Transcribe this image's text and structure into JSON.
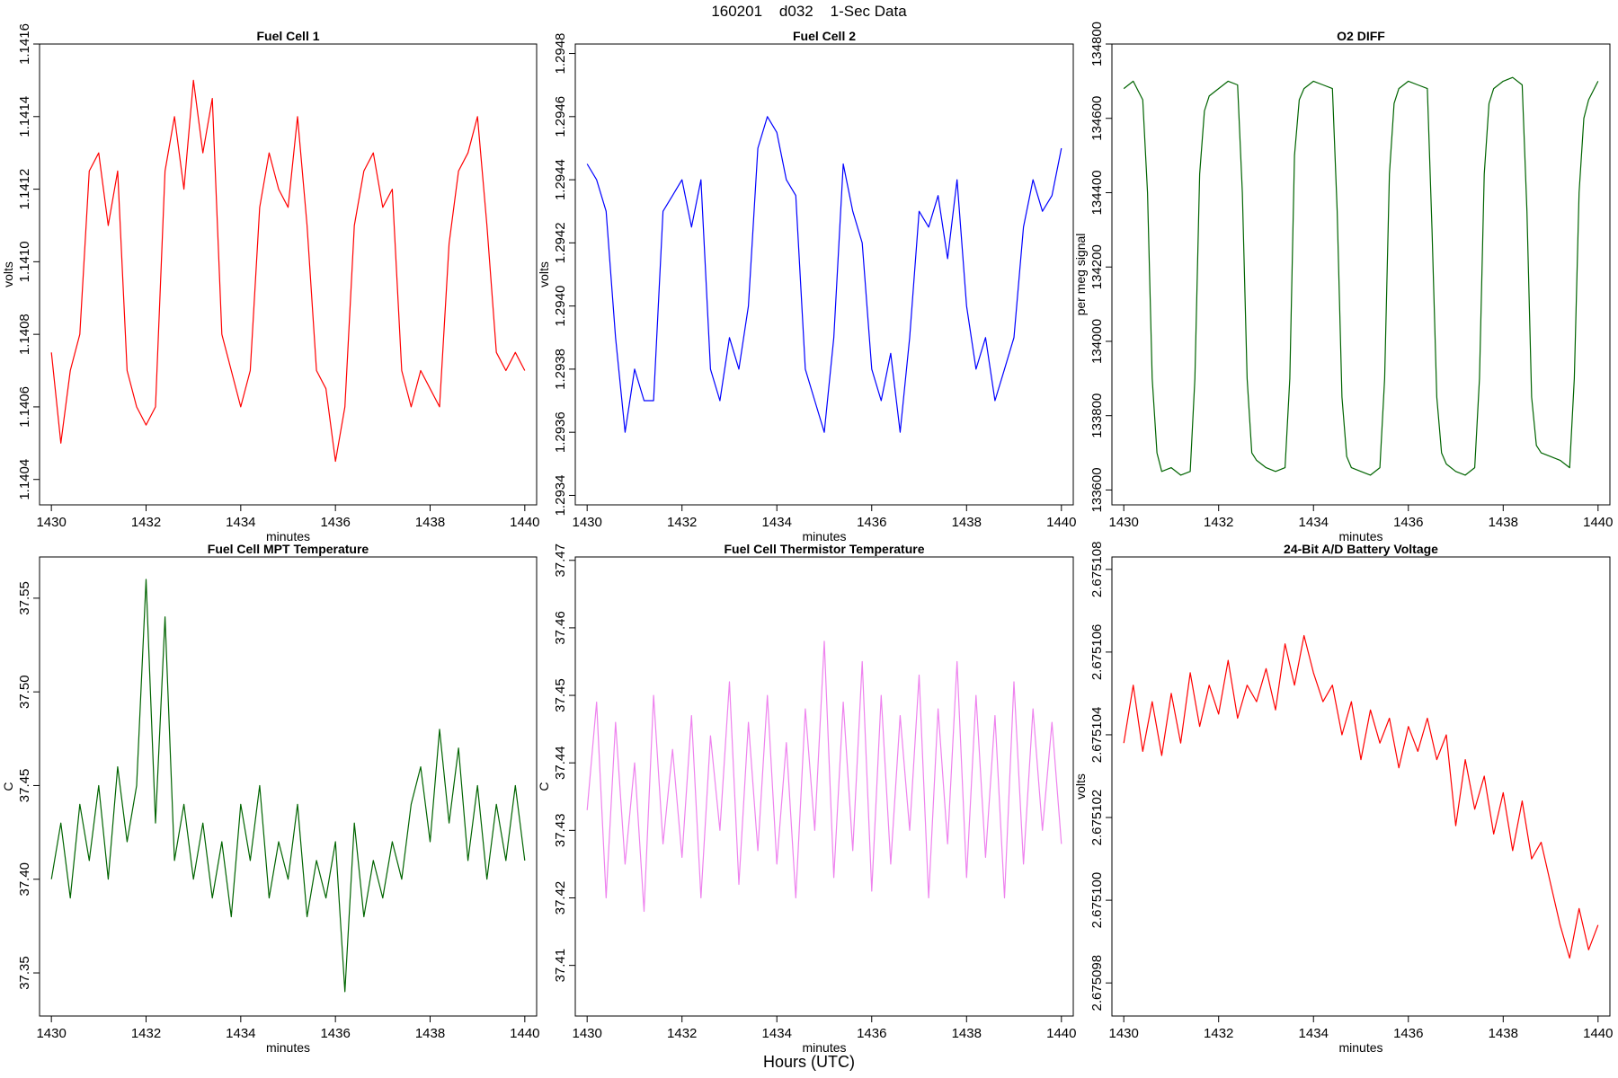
{
  "figure": {
    "title": "160201    d032    1-Sec Data",
    "xlabel": "Hours (UTC)"
  },
  "chart_data": [
    {
      "type": "line",
      "title": "Fuel Cell 1",
      "xlabel": "minutes",
      "ylabel": "volts",
      "color": "#ff0000",
      "xlim": [
        1429.75,
        1440.25
      ],
      "ylim": [
        1.14033,
        1.1416
      ],
      "xticks": [
        1430,
        1432,
        1434,
        1436,
        1438,
        1440
      ],
      "xtick_labels": [
        "1430",
        "1432",
        "1434",
        "1436",
        "1438",
        "1440"
      ],
      "yticks": [
        1.1404,
        1.1406,
        1.1408,
        1.141,
        1.1412,
        1.1414,
        1.1416
      ],
      "ytick_labels": [
        "1.1404",
        "1.1406",
        "1.1408",
        "1.1410",
        "1.1412",
        "1.1414",
        "1.1416"
      ],
      "x": [
        1430.0,
        1430.2,
        1430.4,
        1430.6,
        1430.8,
        1431.0,
        1431.2,
        1431.4,
        1431.6,
        1431.8,
        1432.0,
        1432.2,
        1432.4,
        1432.6,
        1432.8,
        1433.0,
        1433.2,
        1433.4,
        1433.6,
        1433.8,
        1434.0,
        1434.2,
        1434.4,
        1434.6,
        1434.8,
        1435.0,
        1435.2,
        1435.4,
        1435.6,
        1435.8,
        1436.0,
        1436.2,
        1436.4,
        1436.6,
        1436.8,
        1437.0,
        1437.2,
        1437.4,
        1437.6,
        1437.8,
        1438.0,
        1438.2,
        1438.4,
        1438.6,
        1438.8,
        1439.0,
        1439.2,
        1439.4,
        1439.6,
        1439.8,
        1440.0
      ],
      "y": [
        1.14075,
        1.1405,
        1.1407,
        1.1408,
        1.14125,
        1.1413,
        1.1411,
        1.14125,
        1.1407,
        1.1406,
        1.14055,
        1.1406,
        1.14125,
        1.1414,
        1.1412,
        1.1415,
        1.1413,
        1.14145,
        1.1408,
        1.1407,
        1.1406,
        1.1407,
        1.14115,
        1.1413,
        1.1412,
        1.14115,
        1.1414,
        1.1411,
        1.1407,
        1.14065,
        1.14045,
        1.1406,
        1.1411,
        1.14125,
        1.1413,
        1.14115,
        1.1412,
        1.1407,
        1.1406,
        1.1407,
        1.14065,
        1.1406,
        1.14105,
        1.14125,
        1.1413,
        1.1414,
        1.1411,
        1.14075,
        1.1407,
        1.14075,
        1.1407
      ]
    },
    {
      "type": "line",
      "title": "Fuel Cell 2",
      "xlabel": "minutes",
      "ylabel": "volts",
      "color": "#0000ff",
      "xlim": [
        1429.75,
        1440.25
      ],
      "ylim": [
        1.29337,
        1.29483
      ],
      "xticks": [
        1430,
        1432,
        1434,
        1436,
        1438,
        1440
      ],
      "xtick_labels": [
        "1430",
        "1432",
        "1434",
        "1436",
        "1438",
        "1440"
      ],
      "yticks": [
        1.2934,
        1.2936,
        1.2938,
        1.294,
        1.2942,
        1.2944,
        1.2946,
        1.2948
      ],
      "ytick_labels": [
        "1.2934",
        "1.2936",
        "1.2938",
        "1.2940",
        "1.2942",
        "1.2944",
        "1.2946",
        "1.2948"
      ],
      "x": [
        1430.0,
        1430.2,
        1430.4,
        1430.6,
        1430.8,
        1431.0,
        1431.2,
        1431.4,
        1431.6,
        1431.8,
        1432.0,
        1432.2,
        1432.4,
        1432.6,
        1432.8,
        1433.0,
        1433.2,
        1433.4,
        1433.6,
        1433.8,
        1434.0,
        1434.2,
        1434.4,
        1434.6,
        1434.8,
        1435.0,
        1435.2,
        1435.4,
        1435.6,
        1435.8,
        1436.0,
        1436.2,
        1436.4,
        1436.6,
        1436.8,
        1437.0,
        1437.2,
        1437.4,
        1437.6,
        1437.8,
        1438.0,
        1438.2,
        1438.4,
        1438.6,
        1438.8,
        1439.0,
        1439.2,
        1439.4,
        1439.6,
        1439.8,
        1440.0
      ],
      "y": [
        1.29445,
        1.2944,
        1.2943,
        1.2939,
        1.2936,
        1.2938,
        1.2937,
        1.2937,
        1.2943,
        1.29435,
        1.2944,
        1.29425,
        1.2944,
        1.2938,
        1.2937,
        1.2939,
        1.2938,
        1.294,
        1.2945,
        1.2946,
        1.29455,
        1.2944,
        1.29435,
        1.2938,
        1.2937,
        1.2936,
        1.2939,
        1.29445,
        1.2943,
        1.2942,
        1.2938,
        1.2937,
        1.29385,
        1.2936,
        1.2939,
        1.2943,
        1.29425,
        1.29435,
        1.29415,
        1.2944,
        1.294,
        1.2938,
        1.2939,
        1.2937,
        1.2938,
        1.2939,
        1.29425,
        1.2944,
        1.2943,
        1.29435,
        1.2945
      ]
    },
    {
      "type": "line",
      "title": "O2 DIFF",
      "xlabel": "minutes",
      "ylabel": "per meg signal",
      "color": "#006400",
      "xlim": [
        1429.75,
        1440.25
      ],
      "ylim": [
        133560,
        134800
      ],
      "xticks": [
        1430,
        1432,
        1434,
        1436,
        1438,
        1440
      ],
      "xtick_labels": [
        "1430",
        "1432",
        "1434",
        "1436",
        "1438",
        "1440"
      ],
      "yticks": [
        133600,
        133800,
        134000,
        134200,
        134400,
        134600,
        134800
      ],
      "ytick_labels": [
        "133600",
        "133800",
        "134000",
        "134200",
        "134400",
        "134600",
        "134800"
      ],
      "x": [
        1430.0,
        1430.2,
        1430.4,
        1430.5,
        1430.6,
        1430.7,
        1430.8,
        1431.0,
        1431.2,
        1431.4,
        1431.5,
        1431.6,
        1431.7,
        1431.8,
        1432.0,
        1432.2,
        1432.4,
        1432.5,
        1432.6,
        1432.7,
        1432.8,
        1433.0,
        1433.2,
        1433.4,
        1433.5,
        1433.6,
        1433.7,
        1433.8,
        1434.0,
        1434.2,
        1434.4,
        1434.5,
        1434.6,
        1434.7,
        1434.8,
        1435.0,
        1435.2,
        1435.4,
        1435.5,
        1435.6,
        1435.7,
        1435.8,
        1436.0,
        1436.2,
        1436.4,
        1436.5,
        1436.6,
        1436.7,
        1436.8,
        1437.0,
        1437.2,
        1437.4,
        1437.5,
        1437.6,
        1437.7,
        1437.8,
        1438.0,
        1438.2,
        1438.4,
        1438.5,
        1438.6,
        1438.7,
        1438.8,
        1439.0,
        1439.2,
        1439.4,
        1439.5,
        1439.6,
        1439.7,
        1439.8,
        1440.0
      ],
      "y": [
        134680,
        134700,
        134650,
        134400,
        133900,
        133700,
        133650,
        133660,
        133640,
        133650,
        133900,
        134450,
        134620,
        134660,
        134680,
        134700,
        134690,
        134400,
        133900,
        133700,
        133680,
        133660,
        133650,
        133660,
        133900,
        134500,
        134650,
        134680,
        134700,
        134690,
        134680,
        134350,
        133850,
        133690,
        133660,
        133650,
        133640,
        133660,
        133900,
        134450,
        134640,
        134680,
        134700,
        134690,
        134680,
        134300,
        133850,
        133700,
        133670,
        133650,
        133640,
        133660,
        133900,
        134450,
        134640,
        134680,
        134700,
        134710,
        134690,
        134350,
        133850,
        133720,
        133700,
        133690,
        133680,
        133660,
        133900,
        134400,
        134600,
        134650,
        134700
      ]
    },
    {
      "type": "line",
      "title": "Fuel Cell MPT Temperature",
      "xlabel": "minutes",
      "ylabel": "C",
      "color": "#006400",
      "xlim": [
        1429.75,
        1440.25
      ],
      "ylim": [
        37.327,
        37.572
      ],
      "xticks": [
        1430,
        1432,
        1434,
        1436,
        1438,
        1440
      ],
      "xtick_labels": [
        "1430",
        "1432",
        "1434",
        "1436",
        "1438",
        "1440"
      ],
      "yticks": [
        37.35,
        37.4,
        37.45,
        37.5,
        37.55
      ],
      "ytick_labels": [
        "37.35",
        "37.40",
        "37.45",
        "37.50",
        "37.55"
      ],
      "x": [
        1430.0,
        1430.2,
        1430.4,
        1430.6,
        1430.8,
        1431.0,
        1431.2,
        1431.4,
        1431.6,
        1431.8,
        1432.0,
        1432.2,
        1432.4,
        1432.6,
        1432.8,
        1433.0,
        1433.2,
        1433.4,
        1433.6,
        1433.8,
        1434.0,
        1434.2,
        1434.4,
        1434.6,
        1434.8,
        1435.0,
        1435.2,
        1435.4,
        1435.6,
        1435.8,
        1436.0,
        1436.2,
        1436.4,
        1436.6,
        1436.8,
        1437.0,
        1437.2,
        1437.4,
        1437.6,
        1437.8,
        1438.0,
        1438.2,
        1438.4,
        1438.6,
        1438.8,
        1439.0,
        1439.2,
        1439.4,
        1439.6,
        1439.8,
        1440.0
      ],
      "y": [
        37.4,
        37.43,
        37.39,
        37.44,
        37.41,
        37.45,
        37.4,
        37.46,
        37.42,
        37.45,
        37.56,
        37.43,
        37.54,
        37.41,
        37.44,
        37.4,
        37.43,
        37.39,
        37.42,
        37.38,
        37.44,
        37.41,
        37.45,
        37.39,
        37.42,
        37.4,
        37.44,
        37.38,
        37.41,
        37.39,
        37.42,
        37.34,
        37.43,
        37.38,
        37.41,
        37.39,
        37.42,
        37.4,
        37.44,
        37.46,
        37.42,
        37.48,
        37.43,
        37.47,
        37.41,
        37.45,
        37.4,
        37.44,
        37.41,
        37.45,
        37.41
      ]
    },
    {
      "type": "line",
      "title": "Fuel Cell Thermistor Temperature",
      "xlabel": "minutes",
      "ylabel": "C",
      "color": "#ee82ee",
      "xlim": [
        1429.75,
        1440.25
      ],
      "ylim": [
        37.4025,
        37.4705
      ],
      "xticks": [
        1430,
        1432,
        1434,
        1436,
        1438,
        1440
      ],
      "xtick_labels": [
        "1430",
        "1432",
        "1434",
        "1436",
        "1438",
        "1440"
      ],
      "yticks": [
        37.41,
        37.42,
        37.43,
        37.44,
        37.45,
        37.46,
        37.47
      ],
      "ytick_labels": [
        "37.41",
        "37.42",
        "37.43",
        "37.44",
        "37.45",
        "37.46",
        "37.47"
      ],
      "x": [
        1430.0,
        1430.2,
        1430.4,
        1430.6,
        1430.8,
        1431.0,
        1431.2,
        1431.4,
        1431.6,
        1431.8,
        1432.0,
        1432.2,
        1432.4,
        1432.6,
        1432.8,
        1433.0,
        1433.2,
        1433.4,
        1433.6,
        1433.8,
        1434.0,
        1434.2,
        1434.4,
        1434.6,
        1434.8,
        1435.0,
        1435.2,
        1435.4,
        1435.6,
        1435.8,
        1436.0,
        1436.2,
        1436.4,
        1436.6,
        1436.8,
        1437.0,
        1437.2,
        1437.4,
        1437.6,
        1437.8,
        1438.0,
        1438.2,
        1438.4,
        1438.6,
        1438.8,
        1439.0,
        1439.2,
        1439.4,
        1439.6,
        1439.8,
        1440.0
      ],
      "y": [
        37.433,
        37.449,
        37.42,
        37.446,
        37.425,
        37.44,
        37.418,
        37.45,
        37.428,
        37.442,
        37.426,
        37.447,
        37.42,
        37.444,
        37.43,
        37.452,
        37.422,
        37.446,
        37.427,
        37.45,
        37.425,
        37.443,
        37.42,
        37.448,
        37.43,
        37.458,
        37.423,
        37.449,
        37.427,
        37.455,
        37.421,
        37.45,
        37.425,
        37.447,
        37.43,
        37.453,
        37.42,
        37.448,
        37.428,
        37.455,
        37.423,
        37.45,
        37.426,
        37.447,
        37.42,
        37.452,
        37.425,
        37.448,
        37.43,
        37.446,
        37.428
      ]
    },
    {
      "type": "line",
      "title": "24-Bit A/D Battery Voltage",
      "xlabel": "minutes",
      "ylabel": "volts",
      "color": "#ff0000",
      "xlim": [
        1429.75,
        1440.25
      ],
      "ylim": [
        2.6750972,
        2.6751083
      ],
      "xticks": [
        1430,
        1432,
        1434,
        1436,
        1438,
        1440
      ],
      "xtick_labels": [
        "1430",
        "1432",
        "1434",
        "1436",
        "1438",
        "1440"
      ],
      "yticks": [
        2.675098,
        2.6751,
        2.675102,
        2.675104,
        2.675106,
        2.675108
      ],
      "ytick_labels": [
        "2.675098",
        "2.675100",
        "2.675102",
        "2.675104",
        "2.675106",
        "2.675108"
      ],
      "x": [
        1430.0,
        1430.2,
        1430.4,
        1430.6,
        1430.8,
        1431.0,
        1431.2,
        1431.4,
        1431.6,
        1431.8,
        1432.0,
        1432.2,
        1432.4,
        1432.6,
        1432.8,
        1433.0,
        1433.2,
        1433.4,
        1433.6,
        1433.8,
        1434.0,
        1434.2,
        1434.4,
        1434.6,
        1434.8,
        1435.0,
        1435.2,
        1435.4,
        1435.6,
        1435.8,
        1436.0,
        1436.2,
        1436.4,
        1436.6,
        1436.8,
        1437.0,
        1437.2,
        1437.4,
        1437.6,
        1437.8,
        1438.0,
        1438.2,
        1438.4,
        1438.6,
        1438.8,
        1439.0,
        1439.2,
        1439.4,
        1439.6,
        1439.8,
        1440.0
      ],
      "y": [
        2.6751038,
        2.6751052,
        2.6751036,
        2.6751048,
        2.6751035,
        2.675105,
        2.6751038,
        2.6751055,
        2.6751042,
        2.6751052,
        2.6751045,
        2.6751058,
        2.6751044,
        2.6751052,
        2.6751048,
        2.6751056,
        2.6751046,
        2.6751062,
        2.6751052,
        2.6751064,
        2.6751055,
        2.6751048,
        2.6751052,
        2.675104,
        2.6751048,
        2.6751034,
        2.6751046,
        2.6751038,
        2.6751044,
        2.6751032,
        2.6751042,
        2.6751036,
        2.6751044,
        2.6751034,
        2.675104,
        2.6751018,
        2.6751034,
        2.6751022,
        2.675103,
        2.6751016,
        2.6751026,
        2.6751012,
        2.6751024,
        2.675101,
        2.6751014,
        2.6751004,
        2.6750994,
        2.6750986,
        2.6750998,
        2.6750988,
        2.6750994
      ]
    }
  ]
}
